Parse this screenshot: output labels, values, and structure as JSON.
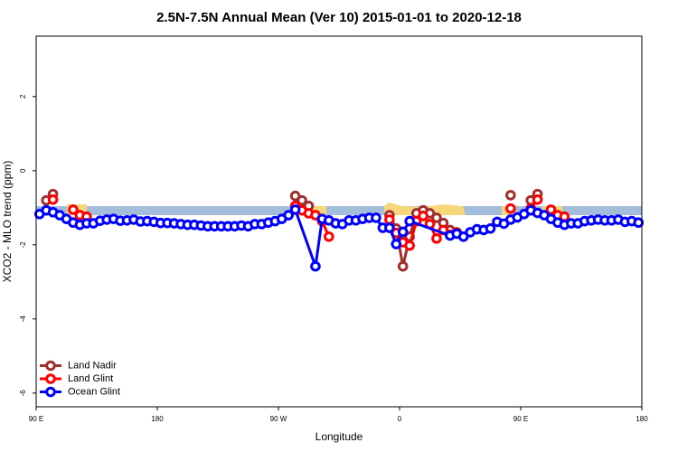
{
  "chart_data": {
    "type": "line",
    "title": "2.5N-7.5N Annual Mean (Ver 10)   2015-01-01 to 2020-12-18",
    "x_label": "Longitude",
    "y_label": "XCO2 - MLO trend (ppm)",
    "xlim": [
      -270,
      180
    ],
    "ylim": [
      -6.37,
      3.63
    ],
    "xticks": [
      {
        "value": -270,
        "label": "90 E"
      },
      {
        "value": -180,
        "label": "180"
      },
      {
        "value": -90,
        "label": "90 W"
      },
      0,
      {
        "value": 90,
        "label": "90 E"
      },
      180
    ],
    "yticks": [
      2,
      0,
      -2,
      -4,
      -6
    ],
    "legend": "bottom-left",
    "series": [
      {
        "name": "Land Nadir",
        "color": "#a03030",
        "x": [
          -262.5,
          -257.5,
          -77.5,
          -72.5,
          -67.5,
          -7.5,
          -2.5,
          2.5,
          7.5,
          12.5,
          17.5,
          22.5,
          27.5,
          32.5,
          37.5,
          42.5,
          82.5,
          97.5,
          102.5
        ],
        "values": [
          -0.8,
          -0.63,
          -0.68,
          -0.8,
          -0.95,
          -1.2,
          -1.56,
          -2.58,
          -1.78,
          -1.15,
          -1.07,
          -1.15,
          -1.27,
          -1.41,
          -1.6,
          -1.66,
          -0.66,
          -0.8,
          -0.63
        ]
      },
      {
        "name": "Land Glint",
        "color": "#ff0000",
        "x": [
          -257.5,
          -242.5,
          -237.5,
          -232.5,
          -77.5,
          -72.5,
          -67.5,
          -62.5,
          -57.5,
          -52.5,
          -7.5,
          -2.5,
          2.5,
          7.5,
          12.5,
          17.5,
          22.5,
          27.5,
          32.5,
          37.5,
          42.5,
          82.5,
          97.5,
          102.5,
          112.5,
          117.5,
          122.5
        ],
        "values": [
          -0.78,
          -1.05,
          -1.2,
          -1.24,
          -0.95,
          -1.07,
          -1.15,
          -1.2,
          -1.36,
          -1.78,
          -1.32,
          -1.68,
          -1.93,
          -2.02,
          -1.36,
          -1.22,
          -1.44,
          -1.83,
          -1.6,
          -1.73,
          -1.68,
          -1.02,
          -1.02,
          -0.78,
          -1.05,
          -1.2,
          -1.24
        ]
      },
      {
        "name": "Ocean Glint",
        "color": "#0000ff",
        "x": [
          -267.5,
          -262.5,
          -257.5,
          -252.5,
          -247.5,
          -242.5,
          -237.5,
          -232.5,
          -227.5,
          -222.5,
          -217.5,
          -212.5,
          -207.5,
          -202.5,
          -197.5,
          -192.5,
          -187.5,
          -182.5,
          -177.5,
          -172.5,
          -167.5,
          -162.5,
          -157.5,
          -152.5,
          -147.5,
          -142.5,
          -137.5,
          -132.5,
          -127.5,
          -122.5,
          -117.5,
          -112.5,
          -107.5,
          -102.5,
          -97.5,
          -92.5,
          -87.5,
          -82.5,
          -77.5,
          -62.5,
          -57.5,
          -52.5,
          -47.5,
          -42.5,
          -37.5,
          -32.5,
          -27.5,
          -22.5,
          -17.5,
          -12.5,
          -7.5,
          -2.5,
          2.5,
          7.5,
          37.5,
          42.5,
          47.5,
          52.5,
          57.5,
          62.5,
          67.5,
          72.5,
          77.5,
          82.5,
          87.5,
          92.5,
          97.5,
          102.5,
          107.5,
          112.5,
          117.5,
          122.5,
          127.5,
          132.5,
          137.5,
          142.5,
          147.5,
          152.5,
          157.5,
          162.5,
          167.5,
          172.5,
          177.5
        ],
        "values": [
          -1.17,
          -1.07,
          -1.12,
          -1.2,
          -1.3,
          -1.4,
          -1.46,
          -1.42,
          -1.42,
          -1.35,
          -1.32,
          -1.3,
          -1.35,
          -1.34,
          -1.32,
          -1.37,
          -1.36,
          -1.38,
          -1.41,
          -1.41,
          -1.42,
          -1.44,
          -1.46,
          -1.46,
          -1.48,
          -1.5,
          -1.5,
          -1.5,
          -1.5,
          -1.5,
          -1.48,
          -1.5,
          -1.44,
          -1.44,
          -1.4,
          -1.36,
          -1.3,
          -1.2,
          -1.05,
          -2.58,
          -1.3,
          -1.34,
          -1.42,
          -1.44,
          -1.34,
          -1.34,
          -1.3,
          -1.27,
          -1.27,
          -1.54,
          -1.54,
          -1.98,
          -1.65,
          -1.36,
          -1.75,
          -1.7,
          -1.78,
          -1.66,
          -1.58,
          -1.6,
          -1.56,
          -1.38,
          -1.43,
          -1.32,
          -1.26,
          -1.17,
          -1.07,
          -1.14,
          -1.2,
          -1.3,
          -1.4,
          -1.46,
          -1.42,
          -1.42,
          -1.36,
          -1.34,
          -1.32,
          -1.34,
          -1.34,
          -1.32,
          -1.38,
          -1.36,
          -1.4
        ]
      }
    ]
  }
}
